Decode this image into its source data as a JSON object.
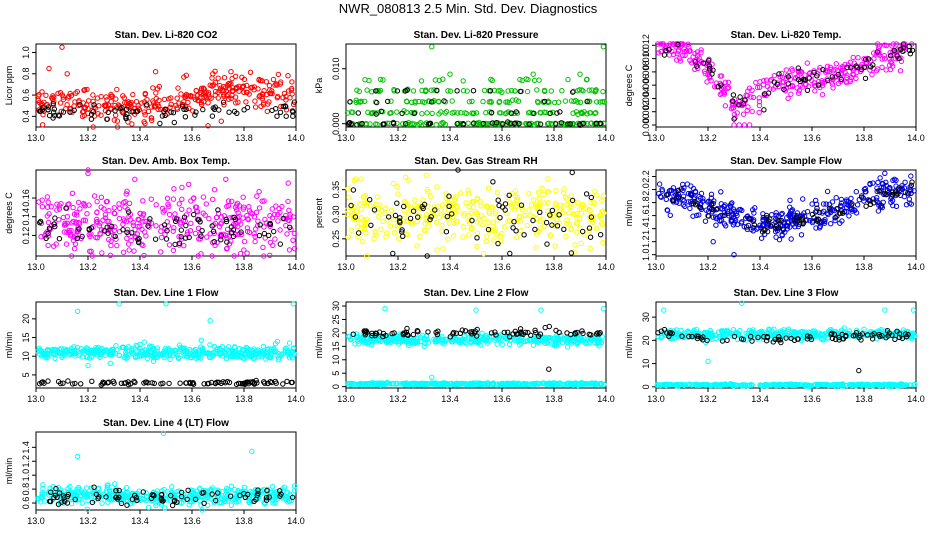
{
  "page": {
    "title": "NWR_080813  2.5 Min. Std. Dev. Diagnostics"
  },
  "chart_data": [
    {
      "type": "scatter",
      "title": "Stan. Dev. Li-820 CO2",
      "ylabel": "Licor ppm",
      "xlim": [
        13.0,
        14.0
      ],
      "ylim": [
        0.3,
        1.08
      ],
      "xticks": [
        "13.0",
        "13.2",
        "13.4",
        "13.6",
        "13.8",
        "14.0"
      ],
      "yticks": [
        0.4,
        0.6,
        0.8,
        1.0
      ],
      "ytick_labels": [
        "0.4",
        "0.6",
        "0.8",
        "1.0"
      ],
      "series": [
        {
          "color": "#ff0000",
          "style": "cluster",
          "n": 330,
          "segments": [
            [
              13.0,
              0.52
            ],
            [
              13.1,
              0.55
            ],
            [
              13.2,
              0.52
            ],
            [
              13.4,
              0.5
            ],
            [
              13.6,
              0.57
            ],
            [
              13.7,
              0.66
            ],
            [
              14.0,
              0.6
            ]
          ],
          "spread": 0.075,
          "outliers": [
            [
              13.1,
              1.05
            ],
            [
              13.12,
              0.8
            ],
            [
              13.05,
              0.85
            ],
            [
              13.22,
              0.3
            ],
            [
              13.46,
              0.82
            ],
            [
              13.68,
              0.8
            ],
            [
              13.75,
              0.82
            ]
          ]
        },
        {
          "color": "#000000",
          "style": "cluster",
          "n": 75,
          "segments": [
            [
              13.0,
              0.45
            ],
            [
              13.5,
              0.44
            ],
            [
              13.7,
              0.46
            ],
            [
              14.0,
              0.45
            ]
          ],
          "spread": 0.04,
          "outliers": []
        }
      ]
    },
    {
      "type": "scatter",
      "title": "Stan. Dev. Li-820 Pressure",
      "ylabel": "kPa",
      "xlim": [
        13.0,
        14.0
      ],
      "ylim": [
        -0.0006,
        0.0145
      ],
      "xticks": [
        "13.0",
        "13.2",
        "13.4",
        "13.6",
        "13.8",
        "14.0"
      ],
      "yticks": [
        0.0,
        0.01
      ],
      "ytick_labels": [
        "0.000",
        "0.010"
      ],
      "series": [
        {
          "color": "#00c000",
          "style": "bands",
          "n": 320,
          "bands": [
            0.0,
            0.002,
            0.004,
            0.006,
            0.008
          ],
          "weights": [
            4,
            3,
            3,
            2,
            1
          ],
          "outliers": [
            [
              13.33,
              0.014
            ],
            [
              13.99,
              0.014
            ],
            [
              13.72,
              0.009
            ],
            [
              13.9,
              0.009
            ],
            [
              13.4,
              0.009
            ]
          ]
        },
        {
          "color": "#000000",
          "style": "bands",
          "n": 70,
          "bands": [
            0.0,
            0.002,
            0.004,
            0.006
          ],
          "weights": [
            5,
            2,
            2,
            1
          ],
          "outliers": []
        }
      ]
    },
    {
      "type": "scatter",
      "title": "Stan. Dev. Li-820 Temp.",
      "ylabel": "degrees C",
      "xlim": [
        13.0,
        14.0
      ],
      "ylim": [
        -0.0003,
        0.0122
      ],
      "xticks": [
        "13.0",
        "13.2",
        "13.4",
        "13.6",
        "13.8",
        "14.0"
      ],
      "yticks": [
        0.0,
        0.002,
        0.004,
        0.006,
        0.008,
        0.01,
        0.012
      ],
      "ytick_labels": [
        "0.000",
        "0.002",
        "0.004",
        "0.006",
        "0.008",
        "0.010",
        "0.012"
      ],
      "series": [
        {
          "color": "#ff00ff",
          "style": "cluster",
          "n": 330,
          "segments": [
            [
              13.0,
              0.0125
            ],
            [
              13.1,
              0.0115
            ],
            [
              13.2,
              0.0085
            ],
            [
              13.3,
              0.003
            ],
            [
              13.4,
              0.0045
            ],
            [
              13.5,
              0.0065
            ],
            [
              13.7,
              0.0075
            ],
            [
              13.85,
              0.0095
            ],
            [
              14.0,
              0.0125
            ]
          ],
          "spread": 0.0012,
          "outliers": [
            [
              13.3,
              0.0
            ],
            [
              13.32,
              0.0
            ],
            [
              13.34,
              0.0
            ],
            [
              13.36,
              0.0
            ]
          ]
        },
        {
          "color": "#000000",
          "style": "cluster",
          "n": 70,
          "segments": [
            [
              13.0,
              0.0122
            ],
            [
              13.1,
              0.0115
            ],
            [
              13.2,
              0.0085
            ],
            [
              13.3,
              0.003
            ],
            [
              13.4,
              0.0045
            ],
            [
              13.5,
              0.0065
            ],
            [
              13.7,
              0.0075
            ],
            [
              13.85,
              0.0095
            ],
            [
              14.0,
              0.0122
            ]
          ],
          "spread": 0.0008,
          "outliers": []
        }
      ]
    },
    {
      "type": "scatter",
      "title": "Stan. Dev. Amb. Box Temp.",
      "ylabel": "degrees C",
      "xlim": [
        13.0,
        14.0
      ],
      "ylim": [
        0.098,
        0.19
      ],
      "xticks": [
        "13.0",
        "13.2",
        "13.4",
        "13.6",
        "13.8",
        "14.0"
      ],
      "yticks": [
        0.12,
        0.14,
        0.16
      ],
      "ytick_labels": [
        "0.12",
        "0.14",
        "0.16"
      ],
      "series": [
        {
          "color": "#ff00ff",
          "style": "cluster",
          "n": 380,
          "segments": [
            [
              13.0,
              0.135
            ],
            [
              14.0,
              0.135
            ]
          ],
          "spread": 0.016,
          "outliers": [
            [
              13.2,
              0.19
            ],
            [
              13.38,
              0.18
            ],
            [
              13.73,
              0.18
            ],
            [
              13.97,
              0.176
            ]
          ]
        },
        {
          "color": "#000000",
          "style": "cluster",
          "n": 75,
          "segments": [
            [
              13.0,
              0.126
            ],
            [
              14.0,
              0.126
            ]
          ],
          "spread": 0.009,
          "outliers": []
        }
      ]
    },
    {
      "type": "scatter",
      "title": "Stan. Dev. Gas Stream RH",
      "ylabel": "percent",
      "xlim": [
        13.0,
        14.0
      ],
      "ylim": [
        0.215,
        0.39
      ],
      "xticks": [
        "13.0",
        "13.2",
        "13.4",
        "13.6",
        "13.8",
        "14.0"
      ],
      "yticks": [
        0.25,
        0.3,
        0.35
      ],
      "ytick_labels": [
        "0.25",
        "0.30",
        "0.35"
      ],
      "series": [
        {
          "color": "#ffff00",
          "style": "cluster",
          "n": 360,
          "segments": [
            [
              13.0,
              0.3
            ],
            [
              14.0,
              0.3
            ]
          ],
          "spread": 0.03,
          "outliers": []
        },
        {
          "color": "#000000",
          "style": "cluster",
          "n": 70,
          "segments": [
            [
              13.0,
              0.295
            ],
            [
              14.0,
              0.295
            ]
          ],
          "spread": 0.03,
          "outliers": [
            [
              13.87,
              0.385
            ],
            [
              13.18,
              0.22
            ],
            [
              13.63,
              0.22
            ]
          ]
        }
      ]
    },
    {
      "type": "scatter",
      "title": "Stan. Dev. Sample Flow",
      "ylabel": "ml/min",
      "xlim": [
        13.0,
        14.0
      ],
      "ylim": [
        0.98,
        2.3
      ],
      "xticks": [
        "13.0",
        "13.2",
        "13.4",
        "13.6",
        "13.8",
        "14.0"
      ],
      "yticks": [
        1.0,
        1.2,
        1.4,
        1.6,
        1.8,
        2.0,
        2.2
      ],
      "ytick_labels": [
        "1.0",
        "1.2",
        "1.4",
        "1.6",
        "1.8",
        "2.0",
        "2.2"
      ],
      "series": [
        {
          "color": "#0000e0",
          "style": "cluster",
          "n": 400,
          "segments": [
            [
              13.0,
              1.95
            ],
            [
              13.1,
              1.9
            ],
            [
              13.2,
              1.72
            ],
            [
              13.3,
              1.55
            ],
            [
              13.4,
              1.5
            ],
            [
              13.5,
              1.48
            ],
            [
              13.6,
              1.55
            ],
            [
              13.7,
              1.68
            ],
            [
              13.8,
              1.85
            ],
            [
              13.9,
              1.97
            ],
            [
              14.0,
              1.98
            ]
          ],
          "spread": 0.12,
          "outliers": [
            [
              13.22,
              1.2
            ],
            [
              13.3,
              1.0
            ],
            [
              13.88,
              2.25
            ]
          ]
        },
        {
          "color": "#000000",
          "style": "cluster",
          "n": 70,
          "segments": [
            [
              13.0,
              1.92
            ],
            [
              13.1,
              1.88
            ],
            [
              13.2,
              1.72
            ],
            [
              13.3,
              1.55
            ],
            [
              13.4,
              1.5
            ],
            [
              13.5,
              1.48
            ],
            [
              13.6,
              1.55
            ],
            [
              13.7,
              1.68
            ],
            [
              13.8,
              1.85
            ],
            [
              13.9,
              1.96
            ],
            [
              14.0,
              1.96
            ]
          ],
          "spread": 0.06,
          "outliers": []
        }
      ]
    },
    {
      "type": "scatter",
      "title": "Stan. Dev. Line 1 Flow",
      "ylabel": "ml/min",
      "xlim": [
        13.0,
        14.0
      ],
      "ylim": [
        1.5,
        24.5
      ],
      "xticks": [
        "13.0",
        "13.2",
        "13.4",
        "13.6",
        "13.8",
        "14.0"
      ],
      "yticks": [
        5,
        10,
        15,
        20
      ],
      "ytick_labels": [
        "5",
        "10",
        "15",
        "20"
      ],
      "series": [
        {
          "color": "#00ffff",
          "style": "cluster",
          "n": 420,
          "segments": [
            [
              13.0,
              11.0
            ],
            [
              14.0,
              11.0
            ]
          ],
          "spread": 0.9,
          "outliers": [
            [
              13.16,
              22.0
            ],
            [
              13.32,
              24.0
            ],
            [
              13.5,
              24.0
            ],
            [
              13.67,
              19.5
            ],
            [
              13.99,
              24.0
            ],
            [
              13.2,
              7.5
            ]
          ]
        },
        {
          "color": "#000000",
          "style": "cluster",
          "n": 90,
          "segments": [
            [
              13.0,
              2.8
            ],
            [
              14.0,
              2.8
            ]
          ],
          "spread": 0.25,
          "outliers": []
        }
      ]
    },
    {
      "type": "scatter",
      "title": "Stan. Dev. Line 2 Flow",
      "ylabel": "ml/min",
      "xlim": [
        13.0,
        14.0
      ],
      "ylim": [
        -0.5,
        31.5
      ],
      "xticks": [
        "13.0",
        "13.2",
        "13.4",
        "13.6",
        "13.8",
        "14.0"
      ],
      "yticks": [
        0,
        5,
        10,
        15,
        20,
        25,
        30
      ],
      "ytick_labels": [
        "0",
        "5",
        "10",
        "15",
        "20",
        "25",
        "30"
      ],
      "series": [
        {
          "color": "#00ffff",
          "style": "cluster",
          "n": 380,
          "segments": [
            [
              13.0,
              17.5
            ],
            [
              14.0,
              17.5
            ]
          ],
          "spread": 0.9,
          "outliers": [
            [
              13.15,
              29.0
            ],
            [
              13.5,
              28.5
            ],
            [
              13.75,
              28.5
            ],
            [
              13.99,
              29.0
            ]
          ]
        },
        {
          "color": "#00ffff",
          "style": "cluster",
          "n": 330,
          "segments": [
            [
              13.0,
              1.0
            ],
            [
              14.0,
              1.0
            ]
          ],
          "spread": 0.2,
          "outliers": [
            [
              13.33,
              3.5
            ]
          ]
        },
        {
          "color": "#000000",
          "style": "cluster",
          "n": 85,
          "segments": [
            [
              13.0,
              20.0
            ],
            [
              14.0,
              20.0
            ]
          ],
          "spread": 0.8,
          "outliers": [
            [
              13.78,
              6.5
            ]
          ]
        }
      ]
    },
    {
      "type": "scatter",
      "title": "Stan. Dev. Line 3 Flow",
      "ylabel": "ml/min",
      "xlim": [
        13.0,
        14.0
      ],
      "ylim": [
        -0.5,
        36.5
      ],
      "xticks": [
        "13.0",
        "13.2",
        "13.4",
        "13.6",
        "13.8",
        "14.0"
      ],
      "yticks": [
        0,
        10,
        20,
        30
      ],
      "ytick_labels": [
        "0",
        "10",
        "20",
        "30"
      ],
      "series": [
        {
          "color": "#00ffff",
          "style": "cluster",
          "n": 380,
          "segments": [
            [
              13.0,
              22.5
            ],
            [
              14.0,
              22.5
            ]
          ],
          "spread": 1.0,
          "outliers": [
            [
              13.03,
              33.0
            ],
            [
              13.33,
              36.0
            ],
            [
              13.88,
              33.0
            ],
            [
              13.99,
              33.0
            ],
            [
              13.2,
              11.0
            ]
          ]
        },
        {
          "color": "#00ffff",
          "style": "cluster",
          "n": 330,
          "segments": [
            [
              13.0,
              0.8
            ],
            [
              14.0,
              0.8
            ]
          ],
          "spread": 0.2,
          "outliers": []
        },
        {
          "color": "#000000",
          "style": "cluster",
          "n": 85,
          "segments": [
            [
              13.0,
              23.5
            ],
            [
              13.2,
              20.5
            ],
            [
              13.5,
              20.5
            ],
            [
              14.0,
              22.5
            ]
          ],
          "spread": 0.8,
          "outliers": [
            [
              13.78,
              7.0
            ]
          ]
        }
      ]
    },
    {
      "type": "scatter",
      "title": "Stan. Dev. Line 4 (LT) Flow",
      "ylabel": "ml/min",
      "xlim": [
        13.0,
        14.0
      ],
      "ylim": [
        0.5,
        1.62
      ],
      "xticks": [
        "13.0",
        "13.2",
        "13.4",
        "13.6",
        "13.8",
        "14.0"
      ],
      "yticks": [
        0.6,
        0.8,
        1.0,
        1.2,
        1.4
      ],
      "ytick_labels": [
        "0.6",
        "0.8",
        "1.0",
        "1.2",
        "1.4"
      ],
      "series": [
        {
          "color": "#00ffff",
          "style": "cluster",
          "n": 400,
          "segments": [
            [
              13.0,
              0.7
            ],
            [
              14.0,
              0.7
            ]
          ],
          "spread": 0.065,
          "outliers": [
            [
              13.16,
              1.27
            ],
            [
              13.49,
              1.6
            ],
            [
              13.83,
              1.34
            ]
          ]
        },
        {
          "color": "#000000",
          "style": "cluster",
          "n": 80,
          "segments": [
            [
              13.0,
              0.68
            ],
            [
              14.0,
              0.68
            ]
          ],
          "spread": 0.05,
          "outliers": []
        }
      ]
    }
  ]
}
